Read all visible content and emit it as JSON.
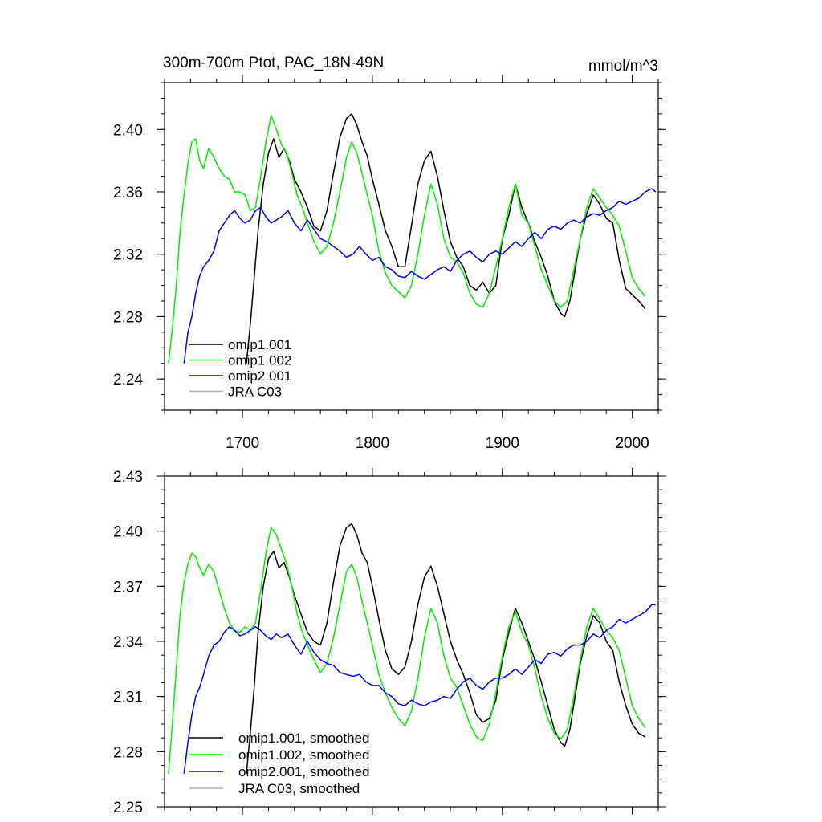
{
  "chart_data": [
    {
      "type": "line",
      "title": "300m-700m Ptot, PAC_18N-49N",
      "units": "mmol/m^3",
      "xlim": [
        1640,
        2020
      ],
      "ylim": [
        2.22,
        2.43
      ],
      "xticks": [
        1700,
        1800,
        1900,
        2000
      ],
      "xtick_labels": [
        "1700",
        "1800",
        "1900",
        "2000"
      ],
      "yticks": [
        2.24,
        2.28,
        2.32,
        2.36,
        2.4
      ],
      "ytick_labels": [
        "2.24",
        "2.28",
        "2.32",
        "2.36",
        "2.40"
      ],
      "legend_position": "bottom-left",
      "series": [
        {
          "name": "omip1.001",
          "color": "#000000",
          "x": [
            1703,
            1706,
            1709,
            1712,
            1716,
            1720,
            1724,
            1728,
            1732,
            1736,
            1740,
            1745,
            1750,
            1755,
            1760,
            1765,
            1770,
            1775,
            1780,
            1784,
            1788,
            1792,
            1796,
            1800,
            1805,
            1810,
            1815,
            1820,
            1825,
            1830,
            1835,
            1840,
            1845,
            1850,
            1855,
            1860,
            1865,
            1870,
            1875,
            1880,
            1885,
            1890,
            1895,
            1900,
            1905,
            1910,
            1915,
            1920,
            1925,
            1930,
            1935,
            1940,
            1945,
            1948,
            1952,
            1956,
            1960,
            1965,
            1970,
            1975,
            1980,
            1985,
            1990,
            1995,
            2000,
            2005,
            2010
          ],
          "values": [
            2.25,
            2.275,
            2.305,
            2.335,
            2.365,
            2.385,
            2.394,
            2.382,
            2.388,
            2.38,
            2.368,
            2.36,
            2.35,
            2.338,
            2.335,
            2.348,
            2.372,
            2.395,
            2.407,
            2.41,
            2.403,
            2.392,
            2.383,
            2.368,
            2.352,
            2.335,
            2.325,
            2.312,
            2.312,
            2.338,
            2.365,
            2.38,
            2.386,
            2.37,
            2.348,
            2.328,
            2.318,
            2.312,
            2.3,
            2.297,
            2.302,
            2.295,
            2.3,
            2.33,
            2.345,
            2.365,
            2.35,
            2.34,
            2.328,
            2.318,
            2.306,
            2.29,
            2.282,
            2.28,
            2.29,
            2.31,
            2.33,
            2.346,
            2.358,
            2.352,
            2.343,
            2.34,
            2.316,
            2.298,
            2.294,
            2.29,
            2.285
          ]
        },
        {
          "name": "omip1.002",
          "color": "#00ee00",
          "x": [
            1643,
            1646,
            1649,
            1652,
            1655,
            1658,
            1661,
            1664,
            1667,
            1670,
            1674,
            1678,
            1682,
            1686,
            1690,
            1694,
            1698,
            1702,
            1706,
            1710,
            1714,
            1718,
            1722,
            1726,
            1730,
            1734,
            1738,
            1742,
            1746,
            1750,
            1755,
            1760,
            1765,
            1770,
            1775,
            1780,
            1784,
            1788,
            1792,
            1796,
            1800,
            1805,
            1810,
            1815,
            1820,
            1825,
            1830,
            1835,
            1840,
            1845,
            1850,
            1855,
            1860,
            1865,
            1870,
            1875,
            1880,
            1885,
            1890,
            1895,
            1900,
            1905,
            1910,
            1915,
            1920,
            1925,
            1930,
            1935,
            1940,
            1945,
            1950,
            1955,
            1960,
            1965,
            1970,
            1975,
            1980,
            1985,
            1990,
            1995,
            2000,
            2005,
            2010
          ],
          "values": [
            2.25,
            2.272,
            2.3,
            2.335,
            2.358,
            2.378,
            2.392,
            2.394,
            2.38,
            2.375,
            2.388,
            2.382,
            2.375,
            2.37,
            2.368,
            2.36,
            2.36,
            2.358,
            2.348,
            2.35,
            2.37,
            2.392,
            2.409,
            2.4,
            2.39,
            2.385,
            2.372,
            2.358,
            2.35,
            2.34,
            2.328,
            2.32,
            2.325,
            2.34,
            2.36,
            2.382,
            2.392,
            2.385,
            2.372,
            2.358,
            2.345,
            2.322,
            2.308,
            2.3,
            2.296,
            2.292,
            2.3,
            2.32,
            2.345,
            2.365,
            2.352,
            2.33,
            2.318,
            2.315,
            2.308,
            2.295,
            2.288,
            2.286,
            2.295,
            2.312,
            2.33,
            2.35,
            2.365,
            2.345,
            2.34,
            2.325,
            2.31,
            2.3,
            2.29,
            2.286,
            2.29,
            2.31,
            2.33,
            2.35,
            2.362,
            2.356,
            2.35,
            2.345,
            2.338,
            2.322,
            2.305,
            2.298,
            2.293
          ]
        },
        {
          "name": "omip2.001",
          "color": "#0000ee",
          "x": [
            1655,
            1658,
            1661,
            1664,
            1667,
            1670,
            1674,
            1678,
            1682,
            1686,
            1690,
            1694,
            1698,
            1702,
            1706,
            1710,
            1714,
            1718,
            1722,
            1726,
            1730,
            1735,
            1740,
            1745,
            1750,
            1755,
            1760,
            1765,
            1770,
            1775,
            1780,
            1785,
            1790,
            1795,
            1800,
            1805,
            1810,
            1815,
            1820,
            1825,
            1830,
            1835,
            1840,
            1845,
            1850,
            1855,
            1860,
            1865,
            1870,
            1875,
            1880,
            1885,
            1890,
            1895,
            1900,
            1905,
            1910,
            1915,
            1920,
            1925,
            1930,
            1935,
            1940,
            1945,
            1950,
            1955,
            1960,
            1965,
            1970,
            1975,
            1980,
            1985,
            1990,
            1995,
            2000,
            2005,
            2010,
            2015,
            2018
          ],
          "values": [
            2.25,
            2.27,
            2.28,
            2.295,
            2.306,
            2.312,
            2.316,
            2.322,
            2.335,
            2.34,
            2.345,
            2.348,
            2.343,
            2.34,
            2.342,
            2.348,
            2.35,
            2.344,
            2.34,
            2.342,
            2.344,
            2.348,
            2.34,
            2.335,
            2.342,
            2.336,
            2.33,
            2.328,
            2.325,
            2.322,
            2.318,
            2.32,
            2.325,
            2.32,
            2.316,
            2.318,
            2.312,
            2.31,
            2.306,
            2.305,
            2.309,
            2.306,
            2.304,
            2.307,
            2.31,
            2.312,
            2.309,
            2.316,
            2.32,
            2.322,
            2.318,
            2.315,
            2.32,
            2.322,
            2.32,
            2.324,
            2.328,
            2.325,
            2.33,
            2.334,
            2.33,
            2.336,
            2.338,
            2.336,
            2.34,
            2.342,
            2.34,
            2.344,
            2.346,
            2.345,
            2.348,
            2.35,
            2.354,
            2.352,
            2.354,
            2.356,
            2.36,
            2.362,
            2.36
          ]
        },
        {
          "name": "JRA C03",
          "color": "#b0b0b0",
          "x": [],
          "values": []
        }
      ]
    },
    {
      "type": "line",
      "title": "",
      "units": "",
      "xlim": [
        1640,
        2020
      ],
      "ylim": [
        2.25,
        2.43
      ],
      "xticks": [
        1700,
        1800,
        1900,
        2000
      ],
      "xtick_labels": [
        "",
        "",
        "",
        ""
      ],
      "yticks": [
        2.25,
        2.28,
        2.31,
        2.34,
        2.37,
        2.4,
        2.43
      ],
      "ytick_labels": [
        "2.25",
        "2.28",
        "2.31",
        "2.34",
        "2.37",
        "2.40",
        "2.43"
      ],
      "legend_position": "bottom-left",
      "series": [
        {
          "name": "omip1.001, smoothed",
          "color": "#000000",
          "x": [
            1703,
            1706,
            1709,
            1712,
            1716,
            1720,
            1724,
            1728,
            1732,
            1736,
            1740,
            1745,
            1750,
            1755,
            1760,
            1765,
            1770,
            1775,
            1780,
            1784,
            1788,
            1792,
            1796,
            1800,
            1805,
            1810,
            1815,
            1820,
            1825,
            1830,
            1835,
            1840,
            1845,
            1850,
            1855,
            1860,
            1865,
            1870,
            1875,
            1880,
            1885,
            1890,
            1895,
            1900,
            1905,
            1910,
            1915,
            1920,
            1925,
            1930,
            1935,
            1940,
            1945,
            1948,
            1952,
            1956,
            1960,
            1965,
            1970,
            1975,
            1980,
            1985,
            1990,
            1995,
            2000,
            2005,
            2010
          ],
          "values": [
            2.268,
            2.29,
            2.315,
            2.345,
            2.37,
            2.385,
            2.389,
            2.38,
            2.383,
            2.375,
            2.365,
            2.355,
            2.345,
            2.34,
            2.338,
            2.35,
            2.372,
            2.392,
            2.402,
            2.404,
            2.398,
            2.388,
            2.383,
            2.37,
            2.352,
            2.335,
            2.325,
            2.322,
            2.326,
            2.34,
            2.36,
            2.375,
            2.381,
            2.37,
            2.355,
            2.34,
            2.33,
            2.322,
            2.312,
            2.3,
            2.296,
            2.298,
            2.308,
            2.33,
            2.345,
            2.358,
            2.35,
            2.34,
            2.33,
            2.318,
            2.305,
            2.292,
            2.285,
            2.283,
            2.292,
            2.31,
            2.328,
            2.343,
            2.354,
            2.35,
            2.34,
            2.335,
            2.318,
            2.305,
            2.295,
            2.29,
            2.288
          ]
        },
        {
          "name": "omip1.002, smoothed",
          "color": "#00ee00",
          "x": [
            1643,
            1646,
            1649,
            1652,
            1655,
            1658,
            1661,
            1664,
            1667,
            1670,
            1674,
            1678,
            1682,
            1686,
            1690,
            1694,
            1698,
            1702,
            1706,
            1710,
            1714,
            1718,
            1722,
            1726,
            1730,
            1734,
            1738,
            1742,
            1746,
            1750,
            1755,
            1760,
            1765,
            1770,
            1775,
            1780,
            1784,
            1788,
            1792,
            1796,
            1800,
            1805,
            1810,
            1815,
            1820,
            1825,
            1830,
            1835,
            1840,
            1845,
            1850,
            1855,
            1860,
            1865,
            1870,
            1875,
            1880,
            1885,
            1890,
            1895,
            1900,
            1905,
            1910,
            1915,
            1920,
            1925,
            1930,
            1935,
            1940,
            1945,
            1950,
            1955,
            1960,
            1965,
            1970,
            1975,
            1980,
            1985,
            1990,
            1995,
            2000,
            2005,
            2010
          ],
          "values": [
            2.268,
            2.295,
            2.325,
            2.355,
            2.372,
            2.382,
            2.388,
            2.386,
            2.38,
            2.376,
            2.382,
            2.378,
            2.368,
            2.358,
            2.35,
            2.346,
            2.345,
            2.348,
            2.346,
            2.35,
            2.368,
            2.388,
            2.402,
            2.398,
            2.39,
            2.382,
            2.37,
            2.355,
            2.345,
            2.338,
            2.33,
            2.323,
            2.328,
            2.342,
            2.36,
            2.378,
            2.382,
            2.375,
            2.362,
            2.35,
            2.338,
            2.322,
            2.312,
            2.304,
            2.298,
            2.294,
            2.302,
            2.32,
            2.342,
            2.358,
            2.35,
            2.332,
            2.32,
            2.315,
            2.305,
            2.295,
            2.288,
            2.286,
            2.295,
            2.312,
            2.332,
            2.348,
            2.356,
            2.345,
            2.338,
            2.325,
            2.31,
            2.298,
            2.29,
            2.287,
            2.292,
            2.31,
            2.33,
            2.348,
            2.358,
            2.352,
            2.346,
            2.342,
            2.335,
            2.32,
            2.305,
            2.298,
            2.293
          ]
        },
        {
          "name": "omip2.001, smoothed",
          "color": "#0000ee",
          "x": [
            1655,
            1658,
            1661,
            1664,
            1667,
            1670,
            1674,
            1678,
            1682,
            1686,
            1690,
            1694,
            1698,
            1702,
            1706,
            1710,
            1714,
            1718,
            1722,
            1726,
            1730,
            1735,
            1740,
            1745,
            1750,
            1755,
            1760,
            1765,
            1770,
            1775,
            1780,
            1785,
            1790,
            1795,
            1800,
            1805,
            1810,
            1815,
            1820,
            1825,
            1830,
            1835,
            1840,
            1845,
            1850,
            1855,
            1860,
            1865,
            1870,
            1875,
            1880,
            1885,
            1890,
            1895,
            1900,
            1905,
            1910,
            1915,
            1920,
            1925,
            1930,
            1935,
            1940,
            1945,
            1950,
            1955,
            1960,
            1965,
            1970,
            1975,
            1980,
            1985,
            1990,
            1995,
            2000,
            2005,
            2010,
            2015,
            2018
          ],
          "values": [
            2.268,
            2.285,
            2.3,
            2.31,
            2.315,
            2.322,
            2.332,
            2.338,
            2.34,
            2.345,
            2.348,
            2.346,
            2.343,
            2.344,
            2.346,
            2.348,
            2.346,
            2.343,
            2.341,
            2.344,
            2.342,
            2.344,
            2.338,
            2.333,
            2.34,
            2.334,
            2.33,
            2.328,
            2.327,
            2.323,
            2.322,
            2.321,
            2.322,
            2.318,
            2.316,
            2.316,
            2.312,
            2.31,
            2.306,
            2.305,
            2.308,
            2.306,
            2.305,
            2.307,
            2.308,
            2.31,
            2.309,
            2.314,
            2.318,
            2.32,
            2.316,
            2.314,
            2.318,
            2.32,
            2.32,
            2.322,
            2.325,
            2.322,
            2.326,
            2.33,
            2.328,
            2.333,
            2.334,
            2.332,
            2.336,
            2.338,
            2.338,
            2.34,
            2.344,
            2.342,
            2.346,
            2.348,
            2.352,
            2.35,
            2.352,
            2.354,
            2.356,
            2.36,
            2.36
          ]
        },
        {
          "name": "JRA C03, smoothed",
          "color": "#b0b0b0",
          "x": [],
          "values": []
        }
      ]
    }
  ]
}
